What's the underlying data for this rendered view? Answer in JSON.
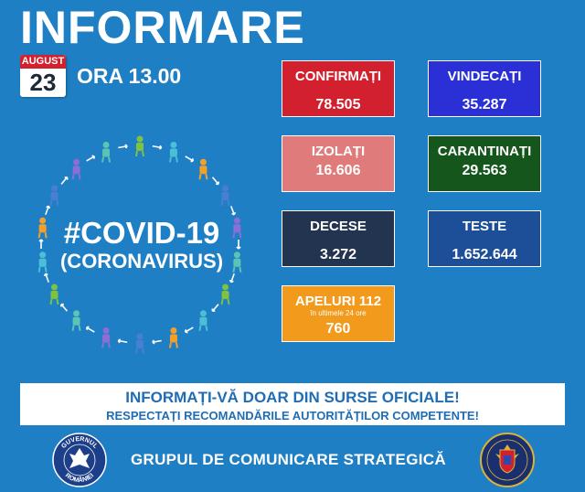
{
  "header": {
    "title": "INFORMARE",
    "date_month": "AUGUST",
    "date_day": "23",
    "hour": "ORA 13.00"
  },
  "stats": {
    "confirmati": {
      "label": "CONFIRMAȚI",
      "value": "78.505",
      "color": "#d3202e"
    },
    "vindecati": {
      "label": "VINDECAȚI",
      "value": "35.287",
      "color": "#2a2fd6"
    },
    "izolati": {
      "label": "IZOLAȚI",
      "value": "16.606",
      "color": "#e07b7b"
    },
    "carantinati": {
      "label": "CARANTINAȚI",
      "value": "29.563",
      "color": "#14561b"
    },
    "decese": {
      "label": "DECESE",
      "value": "3.272",
      "color": "#22344f"
    },
    "teste": {
      "label": "TESTE",
      "value": "1.652.644",
      "color": "#1d4f98"
    },
    "apeluri": {
      "label": "APELURI 112",
      "sublabel": "în ultimele 24 ore",
      "value": "760",
      "color": "#f19a1c"
    }
  },
  "covid": {
    "line1": "#COVID-19",
    "line2": "(CORONAVIRUS)"
  },
  "banner": {
    "line1": "INFORMAȚI-VĂ DOAR DIN SURSE OFICIALE!",
    "line2": "RESPECTAȚI RECOMANDĂRILE AUTORITĂȚILOR COMPETENTE!"
  },
  "footer": {
    "text": "GRUPUL DE COMUNICARE STRATEGICĂ",
    "left_emblem_top": "GUVERNUL",
    "left_emblem_bottom": "ROMÂNIEI"
  },
  "colors": {
    "background": "#1f7fc4",
    "people": [
      "#7fc241",
      "#4bbfd6",
      "#f2a02b",
      "#4a7fd0",
      "#8c6fd6",
      "#5cc3b5"
    ]
  },
  "icons": {
    "ring": "people-circle-icon",
    "left_emblem": "government-seal-icon",
    "right_emblem": "coat-of-arms-icon"
  }
}
